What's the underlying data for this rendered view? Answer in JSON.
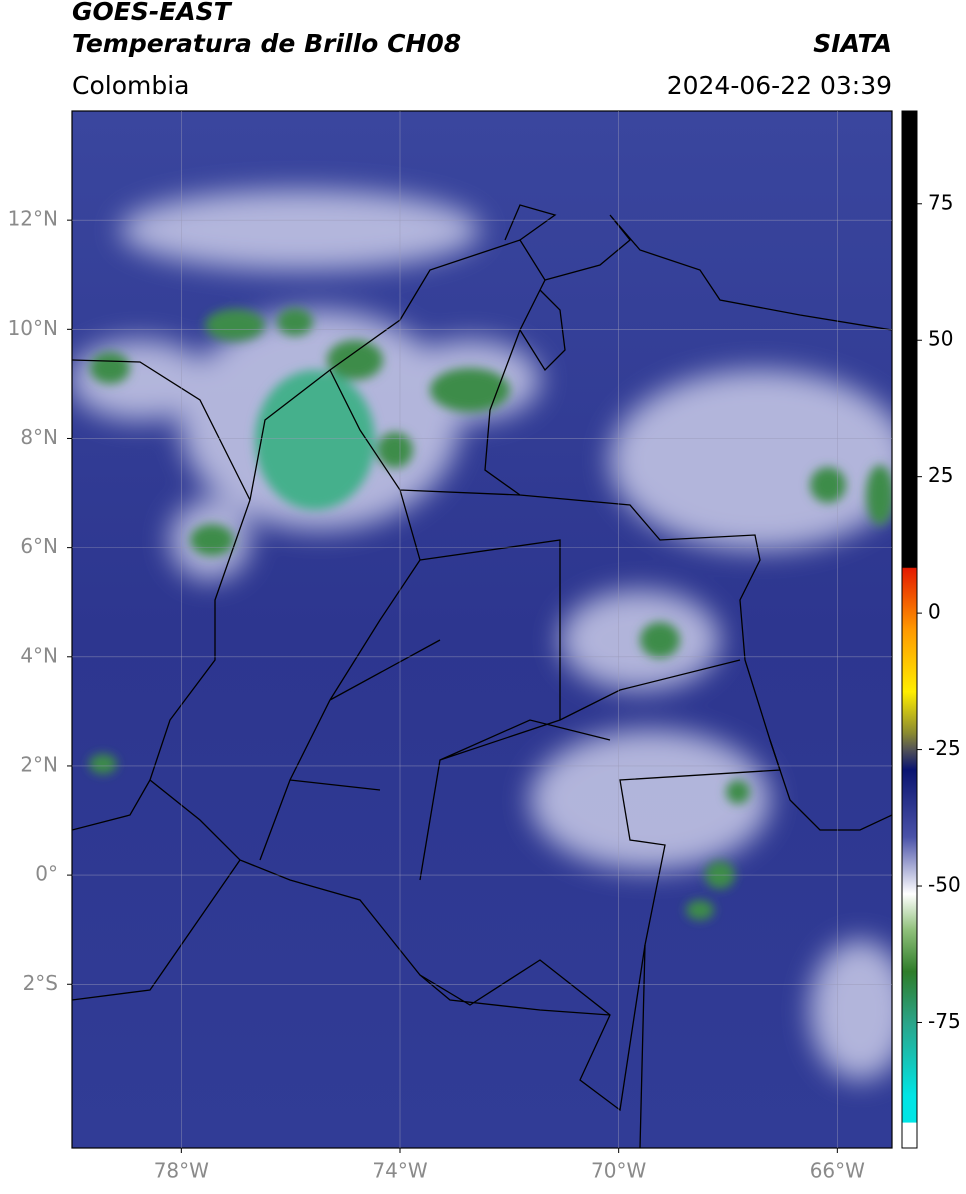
{
  "chart_data": {
    "type": "map",
    "title": "GOES-EAST",
    "subtitle": "Temperatura de Brillo CH08",
    "source": "SIATA",
    "region": "Colombia",
    "datetime": "2024-06-22 03:39",
    "xlim": [
      -80,
      -65
    ],
    "ylim": [
      -5,
      14
    ],
    "xticks": [
      {
        "value": -78,
        "label": "78°W"
      },
      {
        "value": -74,
        "label": "74°W"
      },
      {
        "value": -70,
        "label": "70°W"
      },
      {
        "value": -66,
        "label": "66°W"
      }
    ],
    "yticks": [
      {
        "value": 12,
        "label": "12°N"
      },
      {
        "value": 10,
        "label": "10°N"
      },
      {
        "value": 8,
        "label": "8°N"
      },
      {
        "value": 6,
        "label": "6°N"
      },
      {
        "value": 4,
        "label": "4°N"
      },
      {
        "value": 2,
        "label": "2°N"
      },
      {
        "value": 0,
        "label": "0°"
      },
      {
        "value": -2,
        "label": "2°S"
      }
    ],
    "grid": true,
    "colorbar_lim": [
      -98,
      92
    ],
    "colorbar_ticks": [
      75,
      50,
      25,
      0,
      -25,
      -50,
      -75
    ]
  }
}
